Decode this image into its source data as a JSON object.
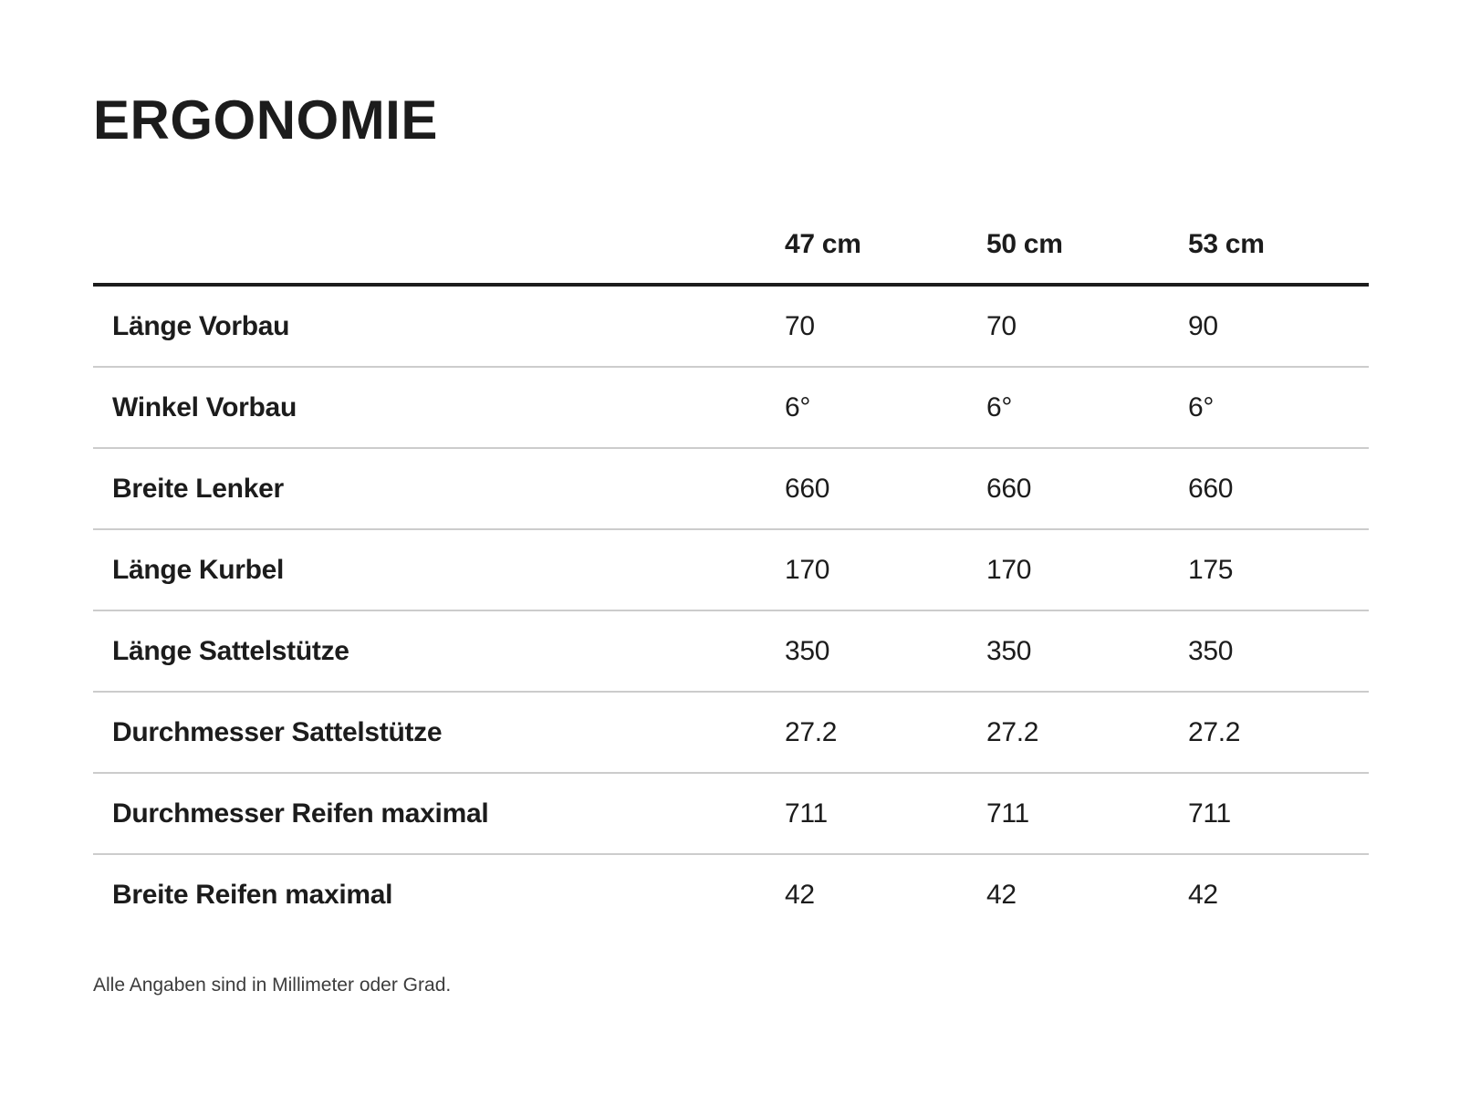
{
  "title": "ERGONOMIE",
  "footnote": "Alle Angaben sind in Millimeter oder Grad.",
  "chart_data": {
    "type": "table",
    "title": "ERGONOMIE",
    "columns": [
      "47 cm",
      "50 cm",
      "53 cm"
    ],
    "rows": [
      {
        "label": "Länge Vorbau",
        "values": [
          "70",
          "70",
          "90"
        ]
      },
      {
        "label": "Winkel Vorbau",
        "values": [
          "6°",
          "6°",
          "6°"
        ]
      },
      {
        "label": "Breite Lenker",
        "values": [
          "660",
          "660",
          "660"
        ]
      },
      {
        "label": "Länge Kurbel",
        "values": [
          "170",
          "170",
          "175"
        ]
      },
      {
        "label": "Länge Sattelstütze",
        "values": [
          "350",
          "350",
          "350"
        ]
      },
      {
        "label": "Durchmesser Sattelstütze",
        "values": [
          "27.2",
          "27.2",
          "27.2"
        ]
      },
      {
        "label": "Durchmesser Reifen maximal",
        "values": [
          "711",
          "711",
          "711"
        ]
      },
      {
        "label": "Breite Reifen maximal",
        "values": [
          "42",
          "42",
          "42"
        ]
      }
    ],
    "note": "Alle Angaben sind in Millimeter oder Grad.",
    "layout": {
      "grid": "horizontal-rules-only",
      "header_rule": "thick",
      "row_rule": "thin"
    }
  },
  "colors": {
    "background": "#ffffff",
    "text": "#1c1c1c",
    "header_rule": "#1c1c1c",
    "row_rule": "#cccccc",
    "note_text": "#3c3c3c"
  }
}
